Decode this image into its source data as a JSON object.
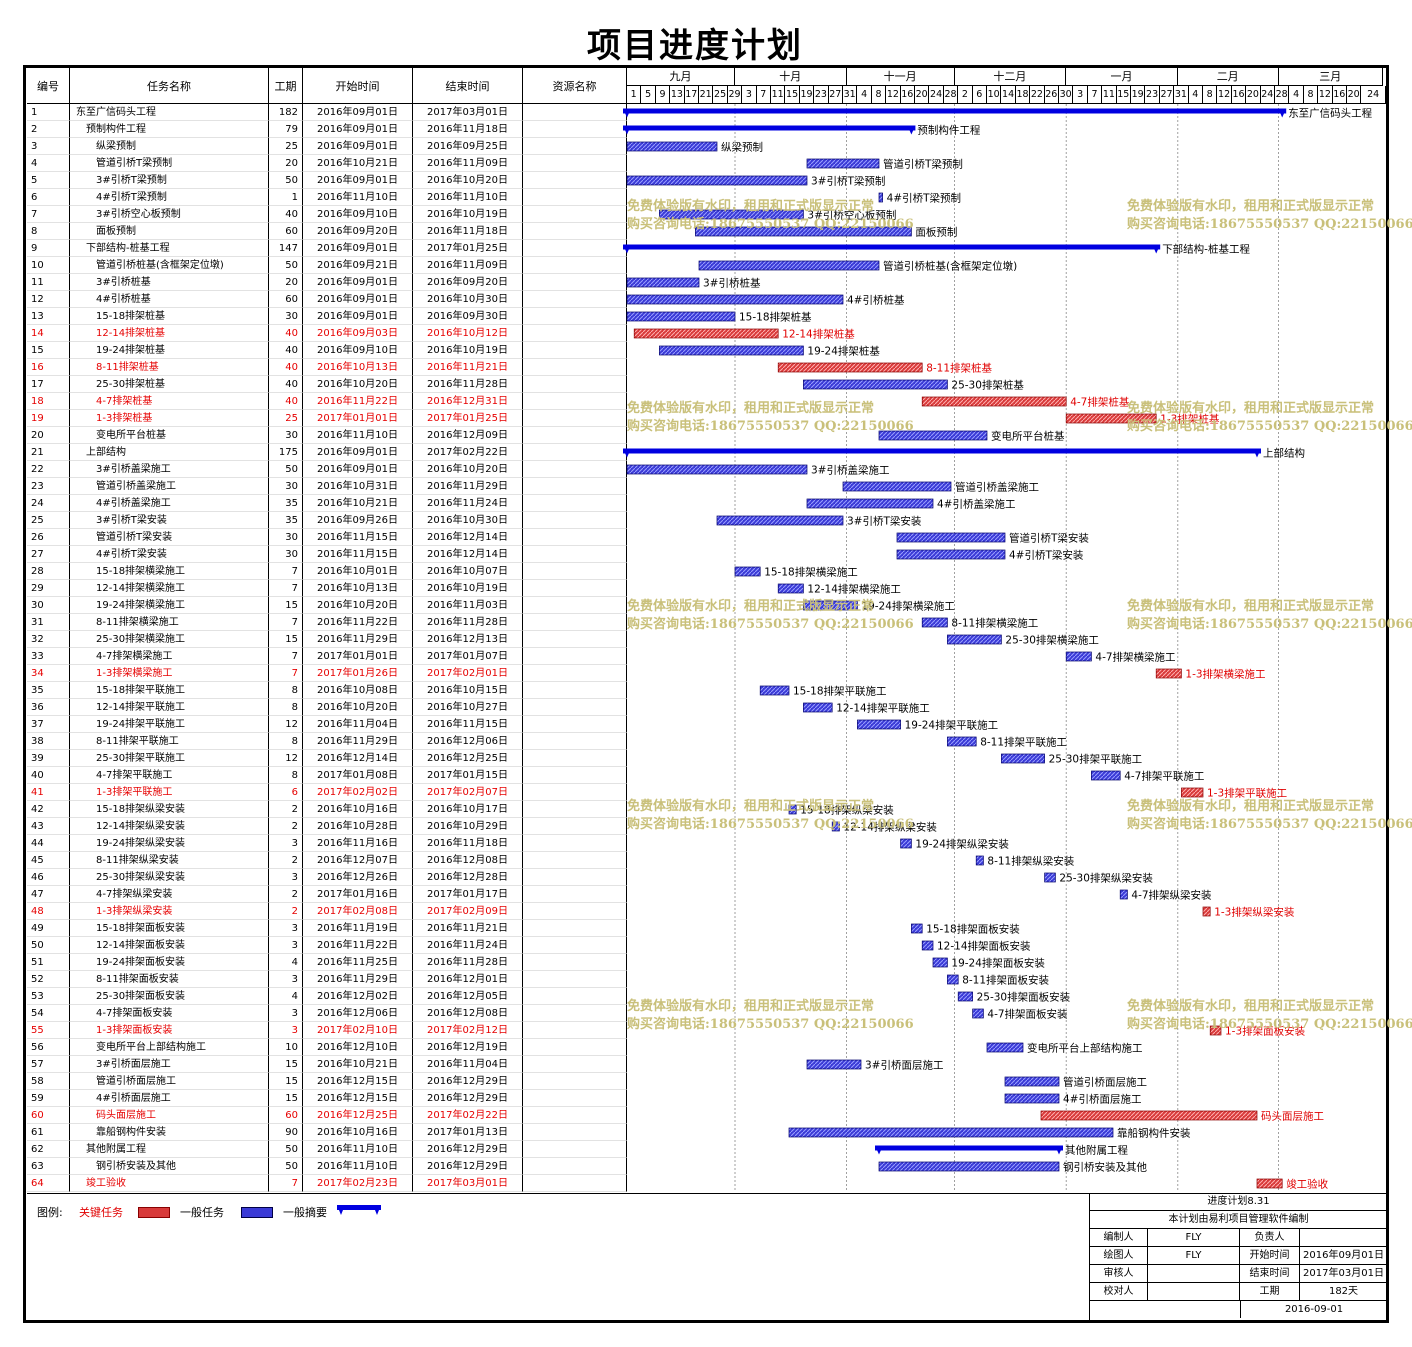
{
  "title": "项目进度计划",
  "columns": {
    "no": "编号",
    "name": "任务名称",
    "dur": "工期",
    "start": "开始时间",
    "end": "结束时间",
    "res": "资源名称"
  },
  "months": [
    "九月",
    "十月",
    "十一月",
    "十二月",
    "一月",
    "二月",
    "三月"
  ],
  "days": [
    "1",
    "5",
    "9",
    "13",
    "17",
    "21",
    "25",
    "29",
    "3",
    "7",
    "11",
    "15",
    "19",
    "23",
    "27",
    "31",
    "4",
    "8",
    "12",
    "16",
    "20",
    "24",
    "28",
    "2",
    "6",
    "10",
    "14",
    "18",
    "22",
    "26",
    "30",
    "3",
    "7",
    "11",
    "15",
    "19",
    "23",
    "27",
    "31",
    "4",
    "8",
    "12",
    "16",
    "20",
    "24",
    "28",
    "4",
    "8",
    "12",
    "16",
    "20",
    "24"
  ],
  "timeline_start": "2016-09-01",
  "tasks": [
    {
      "id": "1",
      "name": "东至广信码头工程",
      "dur": "182",
      "start": "2016年09月01日",
      "end": "2017年03月01日",
      "level": 0,
      "type": "summary"
    },
    {
      "id": "2",
      "name": "预制构件工程",
      "dur": "79",
      "start": "2016年09月01日",
      "end": "2016年11月18日",
      "level": 1,
      "type": "summary"
    },
    {
      "id": "3",
      "name": "纵梁预制",
      "dur": "25",
      "start": "2016年09月01日",
      "end": "2016年09月25日",
      "level": 2,
      "type": "normal"
    },
    {
      "id": "4",
      "name": "管道引桥T梁预制",
      "dur": "20",
      "start": "2016年10月21日",
      "end": "2016年11月09日",
      "level": 2,
      "type": "normal"
    },
    {
      "id": "5",
      "name": "3#引桥T梁预制",
      "dur": "50",
      "start": "2016年09月01日",
      "end": "2016年10月20日",
      "level": 2,
      "type": "normal"
    },
    {
      "id": "6",
      "name": "4#引桥T梁预制",
      "dur": "1",
      "start": "2016年11月10日",
      "end": "2016年11月10日",
      "level": 2,
      "type": "normal"
    },
    {
      "id": "7",
      "name": "3#引桥空心板预制",
      "dur": "40",
      "start": "2016年09月10日",
      "end": "2016年10月19日",
      "level": 2,
      "type": "normal"
    },
    {
      "id": "8",
      "name": "面板预制",
      "dur": "60",
      "start": "2016年09月20日",
      "end": "2016年11月18日",
      "level": 2,
      "type": "normal"
    },
    {
      "id": "9",
      "name": "下部结构-桩基工程",
      "dur": "147",
      "start": "2016年09月01日",
      "end": "2017年01月25日",
      "level": 1,
      "type": "summary"
    },
    {
      "id": "10",
      "name": "管道引桥桩基(含框架定位墩)",
      "dur": "50",
      "start": "2016年09月21日",
      "end": "2016年11月09日",
      "level": 2,
      "type": "normal"
    },
    {
      "id": "11",
      "name": "3#引桥桩基",
      "dur": "20",
      "start": "2016年09月01日",
      "end": "2016年09月20日",
      "level": 2,
      "type": "normal"
    },
    {
      "id": "12",
      "name": "4#引桥桩基",
      "dur": "60",
      "start": "2016年09月01日",
      "end": "2016年10月30日",
      "level": 2,
      "type": "normal"
    },
    {
      "id": "13",
      "name": "15-18排架桩基",
      "dur": "30",
      "start": "2016年09月01日",
      "end": "2016年09月30日",
      "level": 2,
      "type": "normal"
    },
    {
      "id": "14",
      "name": "12-14排架桩基",
      "dur": "40",
      "start": "2016年09月03日",
      "end": "2016年10月12日",
      "level": 2,
      "type": "critical"
    },
    {
      "id": "15",
      "name": "19-24排架桩基",
      "dur": "40",
      "start": "2016年09月10日",
      "end": "2016年10月19日",
      "level": 2,
      "type": "normal"
    },
    {
      "id": "16",
      "name": "8-11排架桩基",
      "dur": "40",
      "start": "2016年10月13日",
      "end": "2016年11月21日",
      "level": 2,
      "type": "critical"
    },
    {
      "id": "17",
      "name": "25-30排架桩基",
      "dur": "40",
      "start": "2016年10月20日",
      "end": "2016年11月28日",
      "level": 2,
      "type": "normal"
    },
    {
      "id": "18",
      "name": "4-7排架桩基",
      "dur": "40",
      "start": "2016年11月22日",
      "end": "2016年12月31日",
      "level": 2,
      "type": "critical"
    },
    {
      "id": "19",
      "name": "1-3排架桩基",
      "dur": "25",
      "start": "2017年01月01日",
      "end": "2017年01月25日",
      "level": 2,
      "type": "critical"
    },
    {
      "id": "20",
      "name": "变电所平台桩基",
      "dur": "30",
      "start": "2016年11月10日",
      "end": "2016年12月09日",
      "level": 2,
      "type": "normal"
    },
    {
      "id": "21",
      "name": "上部结构",
      "dur": "175",
      "start": "2016年09月01日",
      "end": "2017年02月22日",
      "level": 1,
      "type": "summary"
    },
    {
      "id": "22",
      "name": "3#引桥盖梁施工",
      "dur": "50",
      "start": "2016年09月01日",
      "end": "2016年10月20日",
      "level": 2,
      "type": "normal"
    },
    {
      "id": "23",
      "name": "管道引桥盖梁施工",
      "dur": "30",
      "start": "2016年10月31日",
      "end": "2016年11月29日",
      "level": 2,
      "type": "normal"
    },
    {
      "id": "24",
      "name": "4#引桥盖梁施工",
      "dur": "35",
      "start": "2016年10月21日",
      "end": "2016年11月24日",
      "level": 2,
      "type": "normal"
    },
    {
      "id": "25",
      "name": "3#引桥T梁安装",
      "dur": "35",
      "start": "2016年09月26日",
      "end": "2016年10月30日",
      "level": 2,
      "type": "normal"
    },
    {
      "id": "26",
      "name": "管道引桥T梁安装",
      "dur": "30",
      "start": "2016年11月15日",
      "end": "2016年12月14日",
      "level": 2,
      "type": "normal"
    },
    {
      "id": "27",
      "name": "4#引桥T梁安装",
      "dur": "30",
      "start": "2016年11月15日",
      "end": "2016年12月14日",
      "level": 2,
      "type": "normal"
    },
    {
      "id": "28",
      "name": "15-18排架横梁施工",
      "dur": "7",
      "start": "2016年10月01日",
      "end": "2016年10月07日",
      "level": 2,
      "type": "normal"
    },
    {
      "id": "29",
      "name": "12-14排架横梁施工",
      "dur": "7",
      "start": "2016年10月13日",
      "end": "2016年10月19日",
      "level": 2,
      "type": "normal"
    },
    {
      "id": "30",
      "name": "19-24排架横梁施工",
      "dur": "15",
      "start": "2016年10月20日",
      "end": "2016年11月03日",
      "level": 2,
      "type": "normal"
    },
    {
      "id": "31",
      "name": "8-11排架横梁施工",
      "dur": "7",
      "start": "2016年11月22日",
      "end": "2016年11月28日",
      "level": 2,
      "type": "normal"
    },
    {
      "id": "32",
      "name": "25-30排架横梁施工",
      "dur": "15",
      "start": "2016年11月29日",
      "end": "2016年12月13日",
      "level": 2,
      "type": "normal"
    },
    {
      "id": "33",
      "name": "4-7排架横梁施工",
      "dur": "7",
      "start": "2017年01月01日",
      "end": "2017年01月07日",
      "level": 2,
      "type": "normal"
    },
    {
      "id": "34",
      "name": "1-3排架横梁施工",
      "dur": "7",
      "start": "2017年01月26日",
      "end": "2017年02月01日",
      "level": 2,
      "type": "critical"
    },
    {
      "id": "35",
      "name": "15-18排架平联施工",
      "dur": "8",
      "start": "2016年10月08日",
      "end": "2016年10月15日",
      "level": 2,
      "type": "normal"
    },
    {
      "id": "36",
      "name": "12-14排架平联施工",
      "dur": "8",
      "start": "2016年10月20日",
      "end": "2016年10月27日",
      "level": 2,
      "type": "normal"
    },
    {
      "id": "37",
      "name": "19-24排架平联施工",
      "dur": "12",
      "start": "2016年11月04日",
      "end": "2016年11月15日",
      "level": 2,
      "type": "normal"
    },
    {
      "id": "38",
      "name": "8-11排架平联施工",
      "dur": "8",
      "start": "2016年11月29日",
      "end": "2016年12月06日",
      "level": 2,
      "type": "normal"
    },
    {
      "id": "39",
      "name": "25-30排架平联施工",
      "dur": "12",
      "start": "2016年12月14日",
      "end": "2016年12月25日",
      "level": 2,
      "type": "normal"
    },
    {
      "id": "40",
      "name": "4-7排架平联施工",
      "dur": "8",
      "start": "2017年01月08日",
      "end": "2017年01月15日",
      "level": 2,
      "type": "normal"
    },
    {
      "id": "41",
      "name": "1-3排架平联施工",
      "dur": "6",
      "start": "2017年02月02日",
      "end": "2017年02月07日",
      "level": 2,
      "type": "critical"
    },
    {
      "id": "42",
      "name": "15-18排架纵梁安装",
      "dur": "2",
      "start": "2016年10月16日",
      "end": "2016年10月17日",
      "level": 2,
      "type": "normal"
    },
    {
      "id": "43",
      "name": "12-14排架纵梁安装",
      "dur": "2",
      "start": "2016年10月28日",
      "end": "2016年10月29日",
      "level": 2,
      "type": "normal"
    },
    {
      "id": "44",
      "name": "19-24排架纵梁安装",
      "dur": "3",
      "start": "2016年11月16日",
      "end": "2016年11月18日",
      "level": 2,
      "type": "normal"
    },
    {
      "id": "45",
      "name": "8-11排架纵梁安装",
      "dur": "2",
      "start": "2016年12月07日",
      "end": "2016年12月08日",
      "level": 2,
      "type": "normal"
    },
    {
      "id": "46",
      "name": "25-30排架纵梁安装",
      "dur": "3",
      "start": "2016年12月26日",
      "end": "2016年12月28日",
      "level": 2,
      "type": "normal"
    },
    {
      "id": "47",
      "name": "4-7排架纵梁安装",
      "dur": "2",
      "start": "2017年01月16日",
      "end": "2017年01月17日",
      "level": 2,
      "type": "normal"
    },
    {
      "id": "48",
      "name": "1-3排架纵梁安装",
      "dur": "2",
      "start": "2017年02月08日",
      "end": "2017年02月09日",
      "level": 2,
      "type": "critical"
    },
    {
      "id": "49",
      "name": "15-18排架面板安装",
      "dur": "3",
      "start": "2016年11月19日",
      "end": "2016年11月21日",
      "level": 2,
      "type": "normal"
    },
    {
      "id": "50",
      "name": "12-14排架面板安装",
      "dur": "3",
      "start": "2016年11月22日",
      "end": "2016年11月24日",
      "level": 2,
      "type": "normal"
    },
    {
      "id": "51",
      "name": "19-24排架面板安装",
      "dur": "4",
      "start": "2016年11月25日",
      "end": "2016年11月28日",
      "level": 2,
      "type": "normal"
    },
    {
      "id": "52",
      "name": "8-11排架面板安装",
      "dur": "3",
      "start": "2016年11月29日",
      "end": "2016年12月01日",
      "level": 2,
      "type": "normal"
    },
    {
      "id": "53",
      "name": "25-30排架面板安装",
      "dur": "4",
      "start": "2016年12月02日",
      "end": "2016年12月05日",
      "level": 2,
      "type": "normal"
    },
    {
      "id": "54",
      "name": "4-7排架面板安装",
      "dur": "3",
      "start": "2016年12月06日",
      "end": "2016年12月08日",
      "level": 2,
      "type": "normal"
    },
    {
      "id": "55",
      "name": "1-3排架面板安装",
      "dur": "3",
      "start": "2017年02月10日",
      "end": "2017年02月12日",
      "level": 2,
      "type": "critical"
    },
    {
      "id": "56",
      "name": "变电所平台上部结构施工",
      "dur": "10",
      "start": "2016年12月10日",
      "end": "2016年12月19日",
      "level": 2,
      "type": "normal"
    },
    {
      "id": "57",
      "name": "3#引桥面层施工",
      "dur": "15",
      "start": "2016年10月21日",
      "end": "2016年11月04日",
      "level": 2,
      "type": "normal"
    },
    {
      "id": "58",
      "name": "管道引桥面层施工",
      "dur": "15",
      "start": "2016年12月15日",
      "end": "2016年12月29日",
      "level": 2,
      "type": "normal"
    },
    {
      "id": "59",
      "name": "4#引桥面层施工",
      "dur": "15",
      "start": "2016年12月15日",
      "end": "2016年12月29日",
      "level": 2,
      "type": "normal"
    },
    {
      "id": "60",
      "name": "码头面层施工",
      "dur": "60",
      "start": "2016年12月25日",
      "end": "2017年02月22日",
      "level": 2,
      "type": "critical"
    },
    {
      "id": "61",
      "name": "靠船钢构件安装",
      "dur": "90",
      "start": "2016年10月16日",
      "end": "2017年01月13日",
      "level": 2,
      "type": "normal"
    },
    {
      "id": "62",
      "name": "其他附属工程",
      "dur": "50",
      "start": "2016年11月10日",
      "end": "2016年12月29日",
      "level": 1,
      "type": "summary"
    },
    {
      "id": "63",
      "name": "钢引桥安装及其他",
      "dur": "50",
      "start": "2016年11月10日",
      "end": "2016年12月29日",
      "level": 2,
      "type": "normal"
    },
    {
      "id": "64",
      "name": "竣工验收",
      "dur": "7",
      "start": "2017年02月23日",
      "end": "2017年03月01日",
      "level": 1,
      "type": "critical"
    }
  ],
  "watermark": {
    "line1": "免费体验版有水印，租用和正式版显示正常",
    "line2": "购买咨询电话:18675550537 QQ:22150066"
  },
  "legend": {
    "label": "图例:",
    "critical": "关键任务",
    "normal": "一般任务",
    "summary": "一般摘要"
  },
  "info": {
    "plan_name": "进度计划8.31",
    "generated_by": "本计划由易利项目管理软件编制",
    "editor_label": "编制人",
    "editor": "FLY",
    "owner_label": "负责人",
    "owner": "",
    "drawer_label": "绘图人",
    "drawer": "FLY",
    "start_label": "开始时间",
    "start": "2016年09月01日",
    "reviewer_label": "审核人",
    "reviewer": "",
    "end_label": "结束时间",
    "end": "2017年03月01日",
    "checker_label": "校对人",
    "checker": "",
    "duration_label": "工期",
    "duration": "182天",
    "date": "2016-09-01"
  },
  "colors": {
    "normal": "#3a3ad6",
    "summary": "#0000e0",
    "critical": "#d83a3a",
    "link": "#0000cc",
    "critical_link": "#e00000",
    "watermark": "#c9c07a"
  }
}
